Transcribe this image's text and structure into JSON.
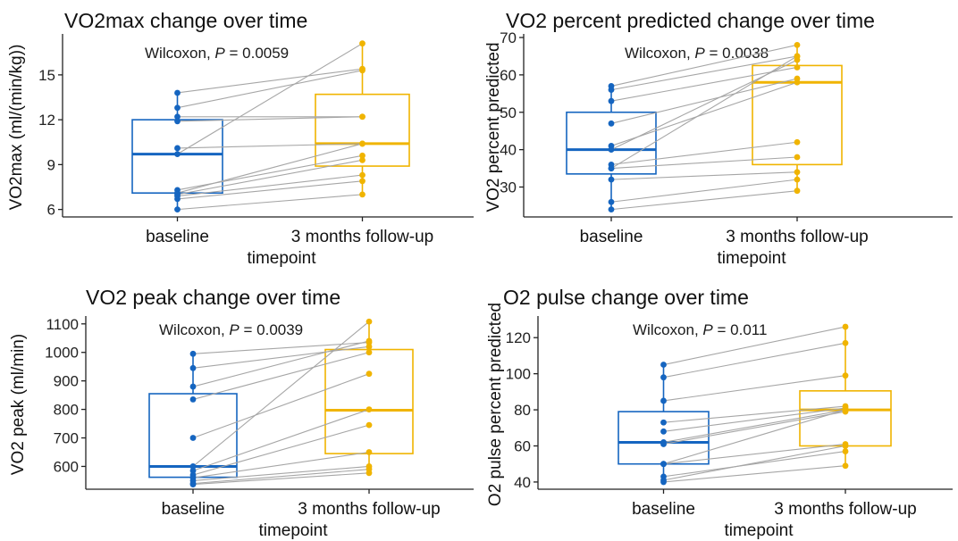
{
  "colors": {
    "baseline": "#1565c0",
    "followup": "#f0b400",
    "pair_line": "#a6a6a6",
    "axis": "#222222"
  },
  "chart_data": [
    {
      "type": "box",
      "title": "VO2max change over time",
      "xlabel": "timepoint",
      "ylabel": "VO2max (ml/(min/kg))",
      "categories": [
        "baseline",
        "3 months follow-up"
      ],
      "yticks": [
        6,
        9,
        12,
        15
      ],
      "ylim": [
        5.5,
        17.5
      ],
      "annotation": {
        "prefix": "Wilcoxon, ",
        "p": "P",
        "suffix": " = 0.0059"
      },
      "boxes": [
        {
          "q1": 7.1,
          "median": 9.7,
          "q3": 12.0,
          "min": 6.0,
          "max": 13.8
        },
        {
          "q1": 8.9,
          "median": 10.4,
          "q3": 13.7,
          "min": 7.0,
          "max": 17.1
        }
      ],
      "pairs": [
        [
          13.8,
          15.4
        ],
        [
          12.8,
          15.3
        ],
        [
          12.2,
          12.2
        ],
        [
          11.9,
          12.2
        ],
        [
          10.1,
          10.4
        ],
        [
          9.7,
          17.1
        ],
        [
          7.3,
          9.6
        ],
        [
          7.1,
          10.4
        ],
        [
          7.0,
          9.3
        ],
        [
          6.9,
          8.3
        ],
        [
          6.7,
          7.9
        ],
        [
          6.0,
          7.0
        ]
      ]
    },
    {
      "type": "box",
      "title": "VO2 percent predicted change over time",
      "xlabel": "timepoint",
      "ylabel": "VO2 percent predicted",
      "categories": [
        "baseline",
        "3 months follow-up"
      ],
      "yticks": [
        30,
        40,
        50,
        60,
        70
      ],
      "ylim": [
        22,
        70
      ],
      "annotation": {
        "prefix": "Wilcoxon, ",
        "p": "P",
        "suffix": " = 0.0038"
      },
      "boxes": [
        {
          "q1": 33.5,
          "median": 40.0,
          "q3": 50.0,
          "min": 24.0,
          "max": 57.0
        },
        {
          "q1": 36.0,
          "median": 58.0,
          "q3": 62.5,
          "min": 29.0,
          "max": 68.0
        }
      ],
      "pairs": [
        [
          57,
          68
        ],
        [
          56,
          65
        ],
        [
          53,
          62
        ],
        [
          47,
          59
        ],
        [
          41,
          58
        ],
        [
          40,
          64
        ],
        [
          36,
          42
        ],
        [
          35,
          65
        ],
        [
          35,
          38
        ],
        [
          32,
          34
        ],
        [
          26,
          32
        ],
        [
          24,
          29
        ]
      ]
    },
    {
      "type": "box",
      "title": "VO2 peak change over time",
      "xlabel": "timepoint",
      "ylabel": "VO2 peak (ml/min)",
      "categories": [
        "baseline",
        "3 months follow-up"
      ],
      "yticks": [
        600,
        700,
        800,
        900,
        1000,
        1100
      ],
      "ylim": [
        520,
        1115
      ],
      "annotation": {
        "prefix": "Wilcoxon, ",
        "p": "P",
        "suffix": " = 0.0039"
      },
      "boxes": [
        {
          "q1": 562,
          "median": 600,
          "q3": 855,
          "min": 537,
          "max": 995
        },
        {
          "q1": 645,
          "median": 797,
          "q3": 1010,
          "min": 577,
          "max": 1108
        }
      ],
      "pairs": [
        [
          995,
          1035
        ],
        [
          945,
          1020
        ],
        [
          880,
          1040
        ],
        [
          835,
          1000
        ],
        [
          700,
          925
        ],
        [
          600,
          1108
        ],
        [
          585,
          800
        ],
        [
          570,
          745
        ],
        [
          560,
          650
        ],
        [
          550,
          600
        ],
        [
          540,
          590
        ],
        [
          537,
          577
        ]
      ]
    },
    {
      "type": "box",
      "title": "O2 pulse change over time",
      "xlabel": "timepoint",
      "ylabel": "O2 pulse percent predicted",
      "categories": [
        "baseline",
        "3 months follow-up"
      ],
      "yticks": [
        40,
        60,
        80,
        100,
        120
      ],
      "ylim": [
        36,
        130
      ],
      "annotation": {
        "prefix": "Wilcoxon, ",
        "p": "P",
        "suffix": " = 0.011"
      },
      "boxes": [
        {
          "q1": 50,
          "median": 62,
          "q3": 79,
          "min": 40,
          "max": 105
        },
        {
          "q1": 60,
          "median": 80,
          "q3": 90.5,
          "min": 49,
          "max": 126
        }
      ],
      "pairs": [
        [
          105,
          126
        ],
        [
          98,
          117
        ],
        [
          85,
          99
        ],
        [
          73,
          82
        ],
        [
          68,
          81
        ],
        [
          62,
          80
        ],
        [
          61,
          79
        ],
        [
          50,
          61
        ],
        [
          50,
          80
        ],
        [
          43,
          57
        ],
        [
          41,
          60
        ],
        [
          40,
          49
        ]
      ]
    }
  ]
}
